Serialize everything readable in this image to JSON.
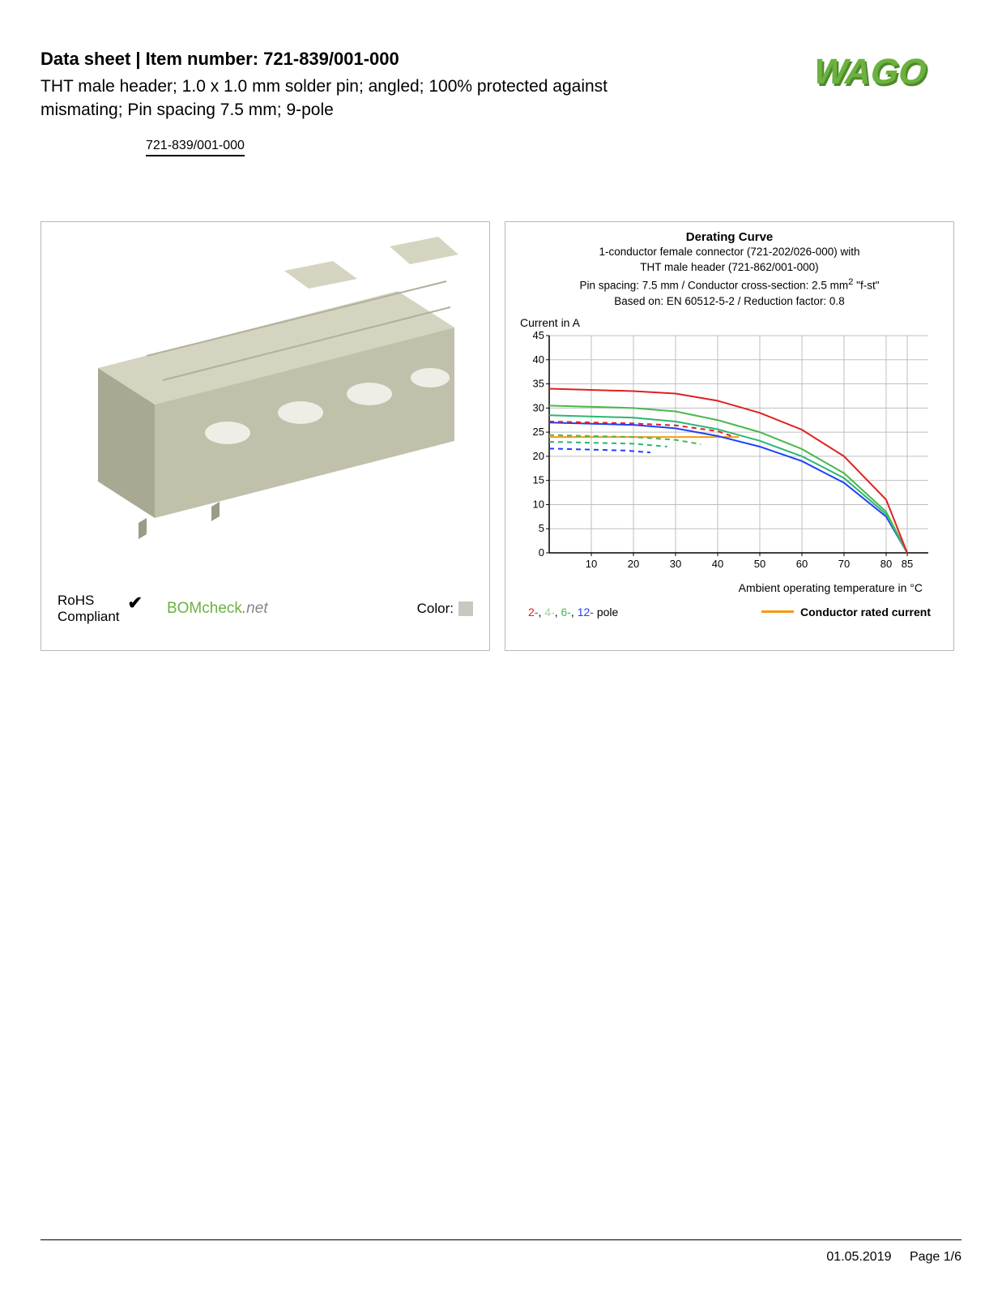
{
  "header": {
    "datasheet_prefix": "Data sheet",
    "sep": " | ",
    "item_label": "Item number:",
    "item_number": "721-839/001-000",
    "subtitle": "THT male header; 1.0 x 1.0 mm solder pin; angled; 100% protected against mismating; Pin spacing 7.5 mm; 9-pole",
    "item_code_underlined": "721-839/001-000"
  },
  "logo": {
    "text": "WAGO",
    "fill": "#6bb23f",
    "shadow": "#4e8a2a"
  },
  "product_panel": {
    "connector_color": "#c9c9b3",
    "connector_shadow": "#a8a895",
    "rohs_line1": "RoHS",
    "rohs_line2": "Compliant",
    "check": "✔",
    "bomcheck_main": "BOMcheck",
    "bomcheck_suffix": ".net",
    "color_label": "Color:",
    "swatch_color": "#c8c8c0"
  },
  "chart": {
    "title": "Derating Curve",
    "sub1": "1-conductor female connector (721-202/026-000) with",
    "sub2": "THT male header (721-862/001-000)",
    "sub3_prefix": "Pin spacing: 7.5 mm / Conductor cross-section: 2.5 mm",
    "sub3_sup": "2",
    "sub3_suffix": " \"f-st\"",
    "sub4": "Based on: EN 60512-5-2 / Reduction factor: 0.8",
    "y_label": "Current in A",
    "x_label": "Ambient operating temperature in °C",
    "ylim": [
      0,
      45
    ],
    "y_ticks": [
      0,
      5,
      10,
      15,
      20,
      25,
      30,
      35,
      40,
      45
    ],
    "xlim": [
      0,
      90
    ],
    "x_ticks": [
      10,
      20,
      30,
      40,
      50,
      60,
      70,
      80,
      85
    ],
    "grid_color": "#bfbfbf",
    "axis_color": "#000000",
    "plot_bg": "#ffffff",
    "series": {
      "pole2": {
        "color": "#e02020",
        "solid": [
          [
            0,
            34
          ],
          [
            20,
            33.5
          ],
          [
            30,
            33
          ],
          [
            40,
            31.5
          ],
          [
            50,
            29
          ],
          [
            60,
            25.5
          ],
          [
            70,
            20
          ],
          [
            80,
            11
          ],
          [
            85,
            0
          ]
        ],
        "dashed": [
          [
            0,
            27.2
          ],
          [
            20,
            26.8
          ],
          [
            30,
            26.4
          ],
          [
            40,
            25.2
          ],
          [
            44,
            24
          ]
        ]
      },
      "pole4": {
        "color": "#49b84e",
        "solid": [
          [
            0,
            30.5
          ],
          [
            20,
            30
          ],
          [
            30,
            29.3
          ],
          [
            40,
            27.5
          ],
          [
            50,
            25
          ],
          [
            60,
            21.5
          ],
          [
            70,
            16.5
          ],
          [
            80,
            8.5
          ],
          [
            85,
            0
          ]
        ],
        "dashed": [
          [
            0,
            24.4
          ],
          [
            20,
            24
          ],
          [
            30,
            23.4
          ],
          [
            36,
            22.5
          ]
        ]
      },
      "pole6": {
        "color": "#2bb673",
        "solid": [
          [
            0,
            28.5
          ],
          [
            20,
            28
          ],
          [
            30,
            27.2
          ],
          [
            40,
            25.6
          ],
          [
            50,
            23.2
          ],
          [
            60,
            20
          ],
          [
            70,
            15.5
          ],
          [
            80,
            8
          ],
          [
            85,
            0
          ]
        ],
        "dashed": [
          [
            0,
            23
          ],
          [
            20,
            22.6
          ],
          [
            28,
            22
          ]
        ]
      },
      "pole12": {
        "color": "#1e40ff",
        "solid": [
          [
            0,
            27
          ],
          [
            20,
            26.5
          ],
          [
            30,
            25.8
          ],
          [
            40,
            24.2
          ],
          [
            50,
            22
          ],
          [
            60,
            19
          ],
          [
            70,
            14.5
          ],
          [
            80,
            7.5
          ],
          [
            85,
            0
          ]
        ],
        "dashed": [
          [
            0,
            21.6
          ],
          [
            18,
            21.2
          ],
          [
            24,
            20.8
          ]
        ]
      },
      "rated": {
        "color": "#f39c12",
        "solid": [
          [
            0,
            24
          ],
          [
            45,
            24
          ]
        ]
      }
    },
    "legend_poles": [
      {
        "label": "2-",
        "color": "#e02020"
      },
      {
        "label": "4-",
        "color": "#9fd49f"
      },
      {
        "label": "6-",
        "color": "#49b84e"
      },
      {
        "label": "12-",
        "color": "#1e40ff"
      }
    ],
    "legend_pole_suffix": " pole",
    "legend_crc": "Conductor rated current",
    "line_width": 2
  },
  "footer": {
    "date": "01.05.2019",
    "page": "Page 1/6"
  }
}
